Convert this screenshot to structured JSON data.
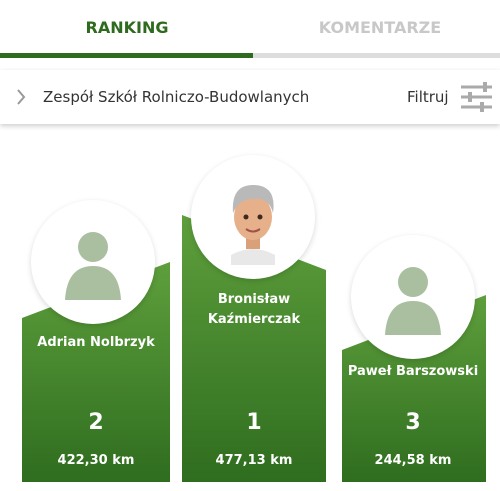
{
  "tabs": [
    "RANKING",
    "KOMENTARZE"
  ],
  "filter_bar": {
    "school": "Zespół Szkół Rolniczo-Budowlanych",
    "filter": "Filtruj"
  },
  "podium": [
    {
      "name": "Adrian Nolbrzyk",
      "rank": 2,
      "distance": "422,30 km"
    },
    {
      "name": "Bronisław Kaźmierczak",
      "rank": 1,
      "distance": "477,13 km"
    },
    {
      "name": "Paweł Barszowski",
      "rank": 3,
      "distance": "244,58 km"
    }
  ]
}
